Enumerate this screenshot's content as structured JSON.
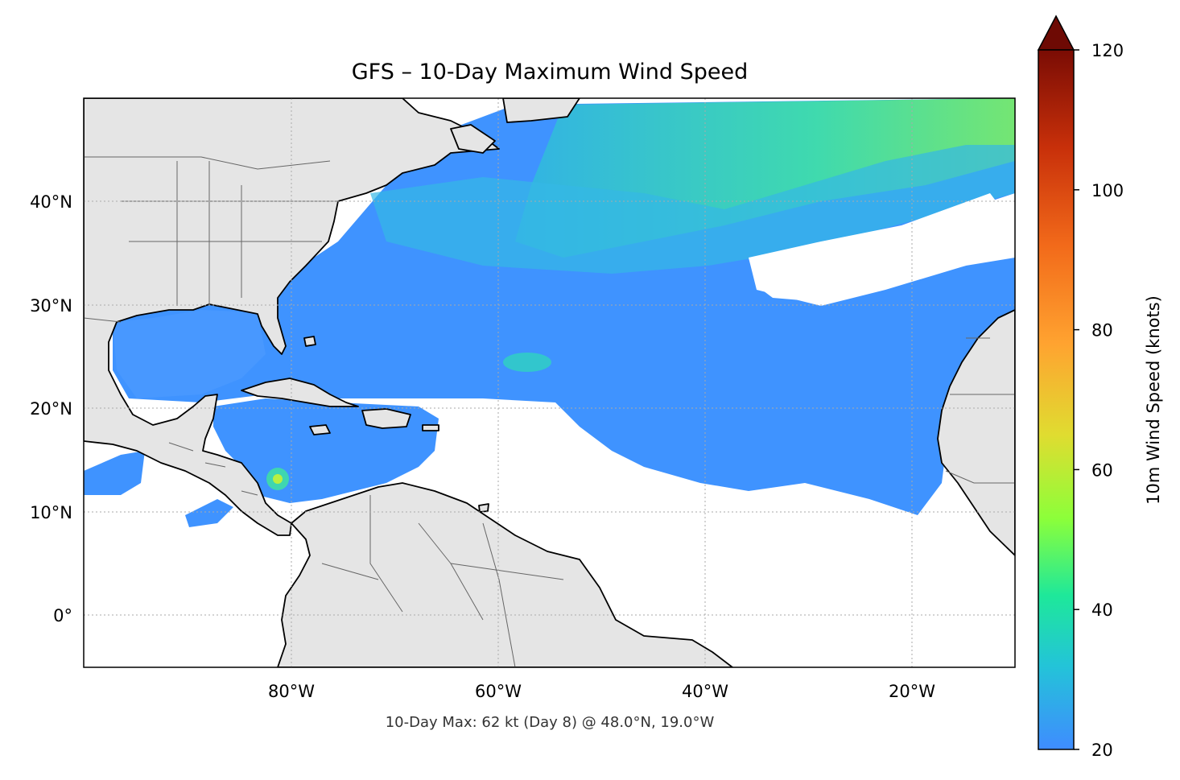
{
  "title": "GFS – 10-Day Maximum Wind Speed",
  "subtitle": "10-Day Max: 62 kt (Day 8) @ 48.0°N, 19.0°W",
  "colorbar": {
    "label": "10m Wind Speed (knots)",
    "min": 20,
    "max": 120,
    "ticks": [
      "20",
      "40",
      "60",
      "80",
      "100",
      "120"
    ],
    "tick_values": [
      20,
      40,
      60,
      80,
      100,
      120
    ],
    "extend": "max",
    "colormap": [
      "#3f8cff",
      "#23c4d8",
      "#1ee89a",
      "#8cff3a",
      "#e0dc30",
      "#ffa330",
      "#f26a1a",
      "#c8300a",
      "#6e0a04"
    ]
  },
  "map": {
    "lon_range": [
      -100,
      -10
    ],
    "lat_range": [
      -5,
      50
    ],
    "lon_ticks": [
      {
        "value": -80,
        "label": "80°W"
      },
      {
        "value": -60,
        "label": "60°W"
      },
      {
        "value": -40,
        "label": "40°W"
      },
      {
        "value": -20,
        "label": "20°W"
      }
    ],
    "lat_ticks": [
      {
        "value": 40,
        "label": "40°N"
      },
      {
        "value": 30,
        "label": "30°N"
      },
      {
        "value": 20,
        "label": "20°N"
      },
      {
        "value": 10,
        "label": "10°N"
      },
      {
        "value": 0,
        "label": "0°"
      }
    ],
    "land_color": "#e5e5e5",
    "ocean_color": "#ffffff",
    "coast_color": "#000000",
    "border_color": "#666666",
    "gridlines": true,
    "peak": {
      "lat": 48.0,
      "lon": -19.0,
      "value_kt": 62,
      "day": 8
    }
  }
}
